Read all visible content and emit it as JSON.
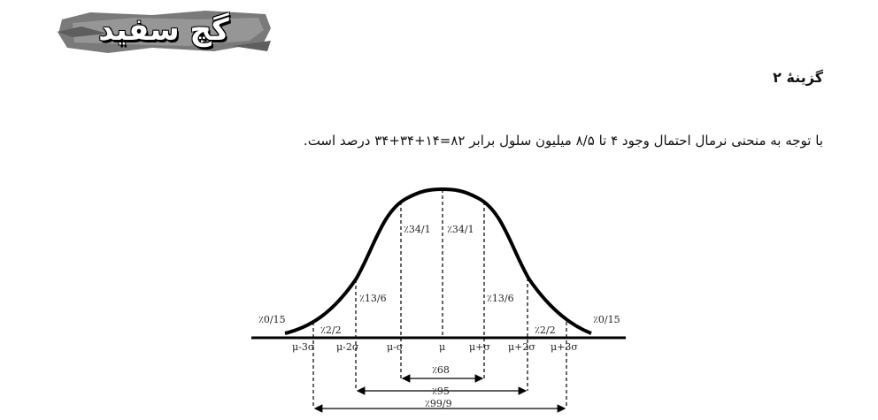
{
  "logo": {
    "text": "گچ سفید"
  },
  "option_title": "گزینهٔ ۲",
  "explanation": "با توجه به منحنی نرمال احتمال وجود ۴ تا ۸/۵ میلیون سلول برابر ۸۲=۱۴+۳۴+۳۴ درصد است.",
  "diagram": {
    "axis_labels": [
      "μ-3σ",
      "μ-2σ",
      "μ-σ",
      "μ",
      "μ+σ",
      "μ+2σ",
      "μ+3σ"
    ],
    "region_labels": {
      "left_tail": "٪0/15",
      "left_2_3": "٪2/2",
      "left_1_2": "٪13/6",
      "left_0_1": "٪34/1",
      "right_0_1": "٪34/1",
      "right_1_2": "٪13/6",
      "right_2_3": "٪2/2",
      "right_tail": "٪0/15"
    },
    "ranges": [
      {
        "label": "٪68"
      },
      {
        "label": "٪95"
      },
      {
        "label": "٪99/9"
      }
    ]
  }
}
